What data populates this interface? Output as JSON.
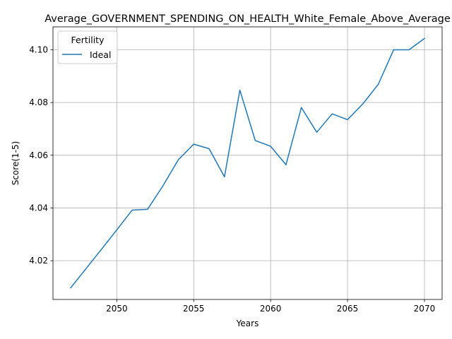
{
  "chart_data": {
    "type": "line",
    "title": "Average_GOVERNMENT_SPENDING_ON_HEALTH_White_Female_Above_Average",
    "xlabel": "Years",
    "ylabel": "Score(1-5)",
    "xlim": [
      2045.85,
      2071.15
    ],
    "ylim": [
      4.0053,
      4.1087
    ],
    "xticks": [
      2050,
      2055,
      2060,
      2065,
      2070
    ],
    "yticks": [
      4.02,
      4.04,
      4.06,
      4.08,
      4.1
    ],
    "xtick_labels": [
      "2050",
      "2055",
      "2060",
      "2065",
      "2070"
    ],
    "ytick_labels": [
      "4.02",
      "4.04",
      "4.06",
      "4.08",
      "4.10"
    ],
    "grid": true,
    "legend": {
      "title": "Fertility",
      "placement": "top-left"
    },
    "series": [
      {
        "name": "Ideal",
        "color": "#1f77b4",
        "x": [
          2047,
          2048,
          2049,
          2050,
          2051,
          2052,
          2053,
          2054,
          2055,
          2056,
          2057,
          2058,
          2059,
          2060,
          2061,
          2062,
          2063,
          2064,
          2065,
          2066,
          2067,
          2068,
          2069,
          2070
        ],
        "y": [
          4.0097,
          4.017,
          4.0243,
          4.0317,
          4.0392,
          4.0395,
          4.0484,
          4.0583,
          4.0642,
          4.0625,
          4.0518,
          4.0847,
          4.0656,
          4.0634,
          4.0564,
          4.0781,
          4.0687,
          4.0757,
          4.0735,
          4.0795,
          4.0869,
          4.1,
          4.1,
          4.1043
        ]
      }
    ]
  }
}
